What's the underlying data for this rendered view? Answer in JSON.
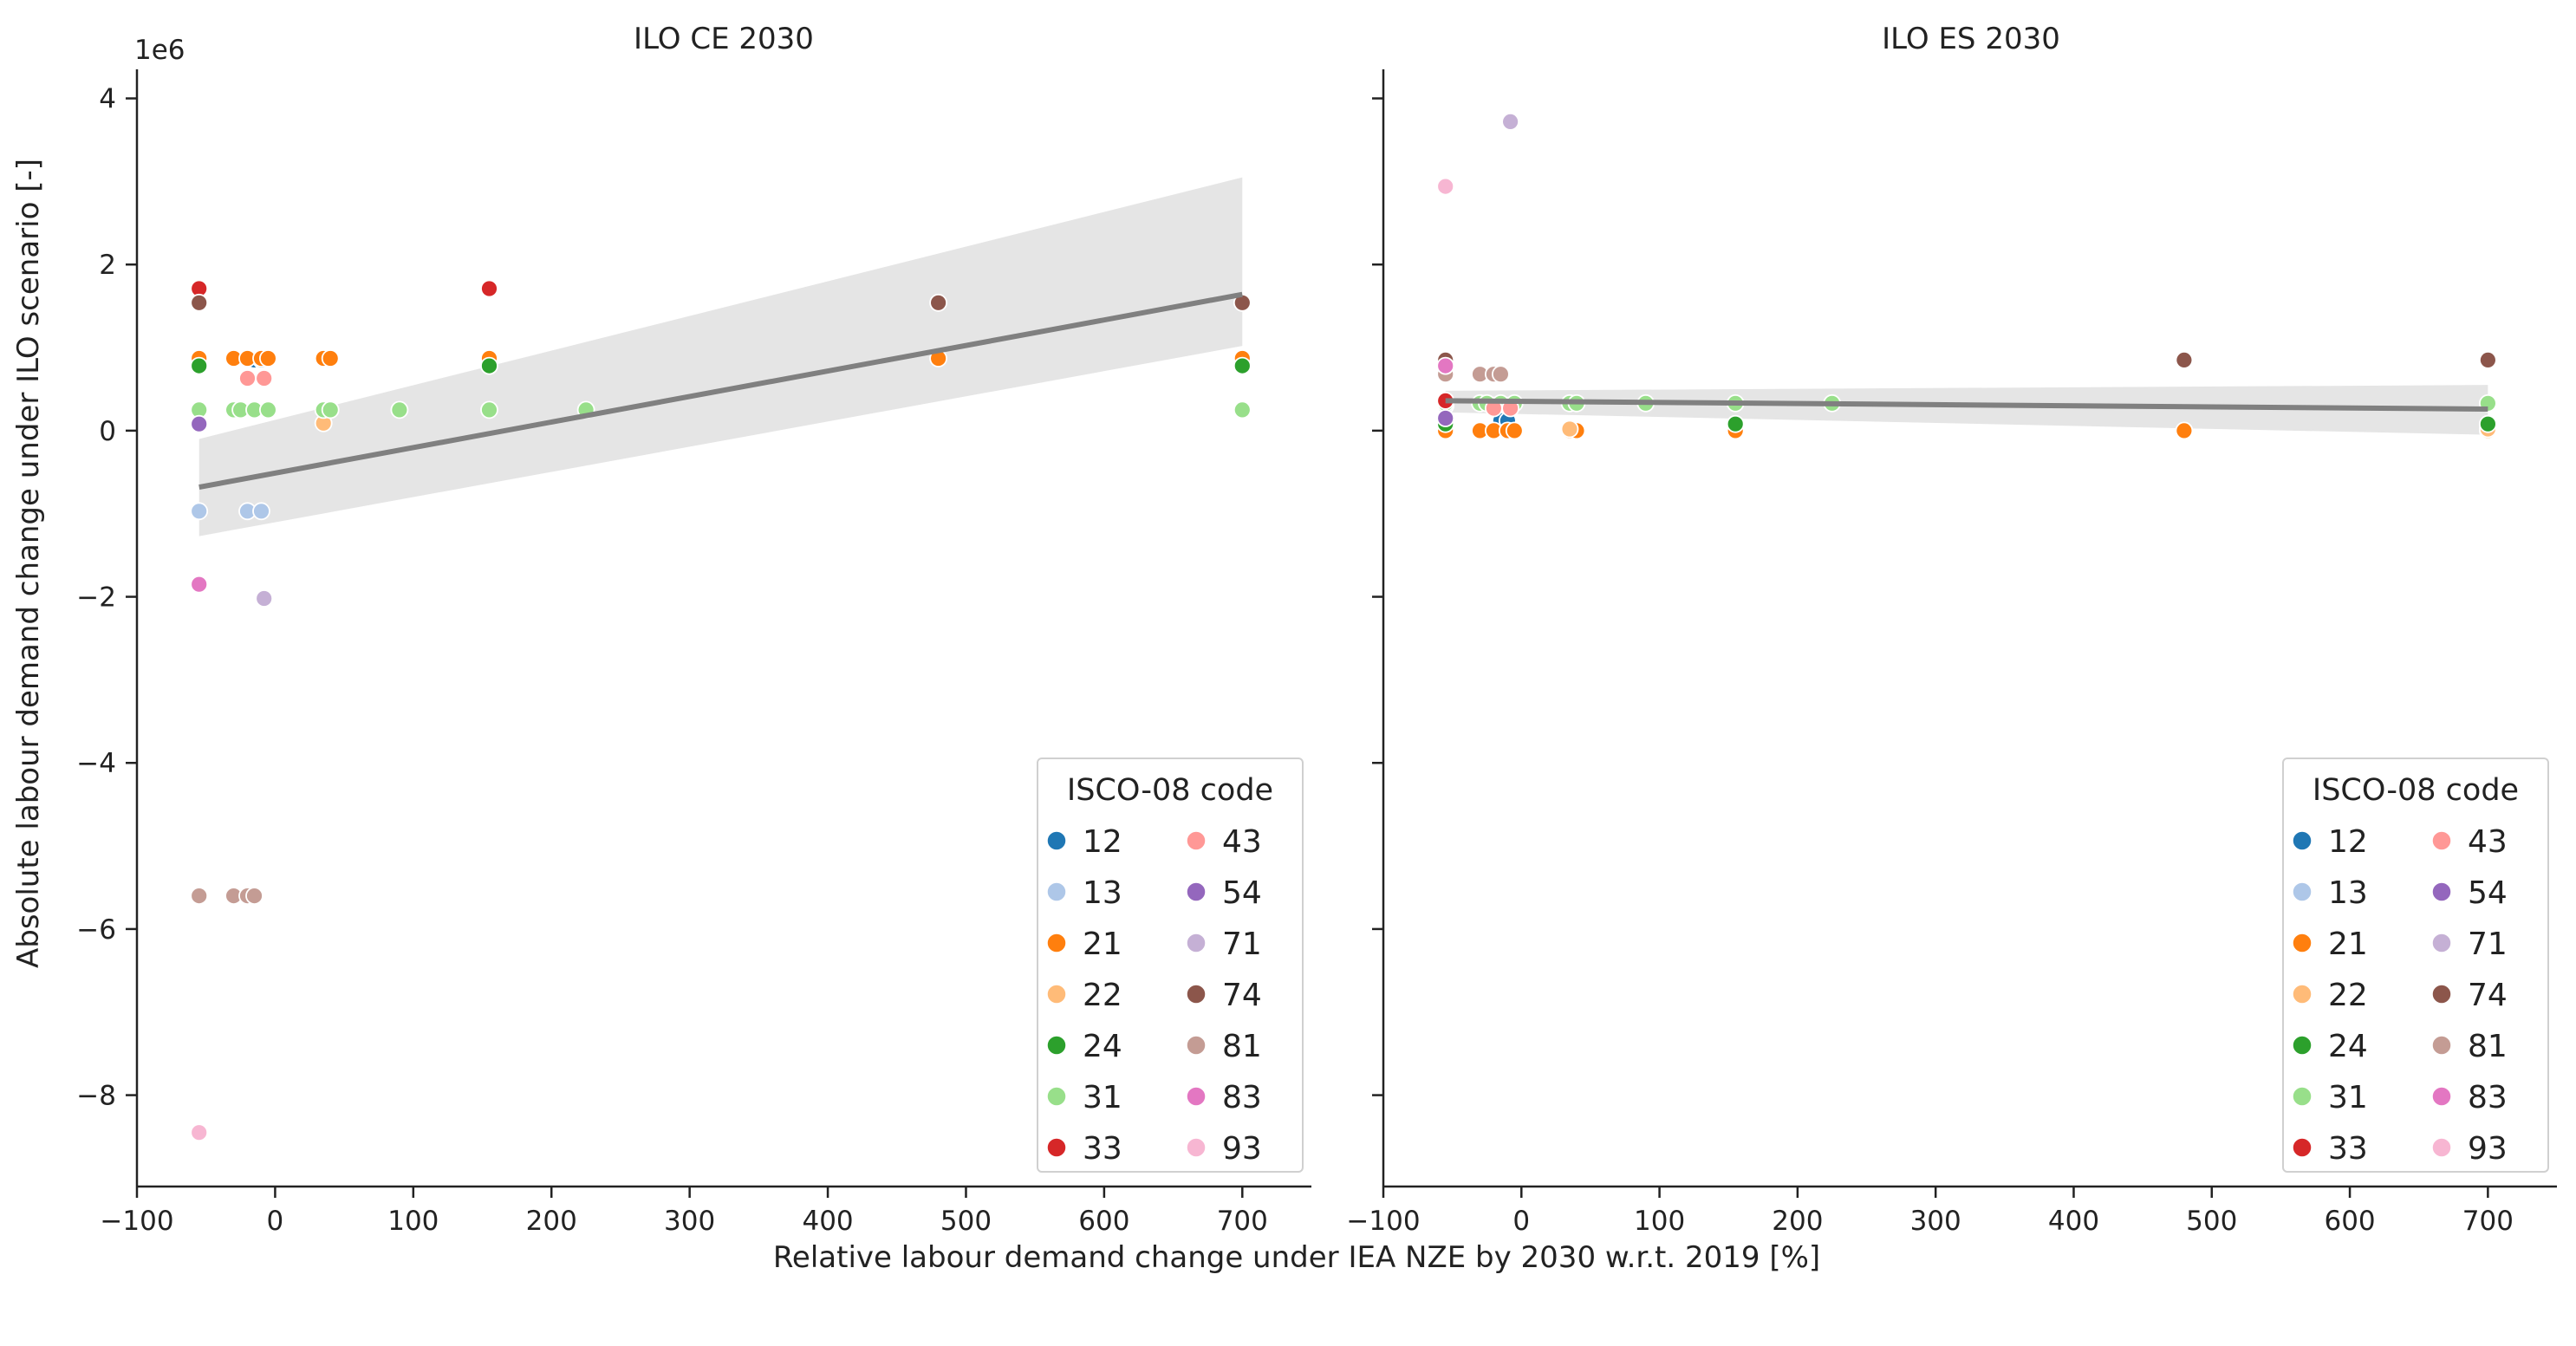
{
  "figure": {
    "xlabel": "Relative labour demand change under IEA NZE by 2030 w.r.t. 2019 [%]",
    "ylabel": "Absolute labour demand change under ILO scenario [-]",
    "y_offset_label": "1e6"
  },
  "palette": {
    "12": "#1f77b4",
    "13": "#aec7e8",
    "21": "#ff7f0e",
    "22": "#ffbb78",
    "24": "#2ca02c",
    "31": "#98df8a",
    "33": "#d62728",
    "43": "#ff9896",
    "54": "#9467bd",
    "71": "#c5b0d5",
    "74": "#8c564b",
    "81": "#c49c94",
    "83": "#e377c2",
    "93": "#f7b6d2",
    "regression_line": "#808080",
    "confidence_band": "#e5e5e5"
  },
  "chart_data": [
    {
      "type": "scatter",
      "title": "ILO CE 2030",
      "xlim": [
        -100,
        750
      ],
      "ylim": [
        -9.1,
        4.35
      ],
      "xticks": [
        -100,
        0,
        100,
        200,
        300,
        400,
        500,
        600,
        700
      ],
      "yticks": [
        -8,
        -6,
        -4,
        -2,
        0,
        2,
        4
      ],
      "y_unit": "1e6",
      "legend": {
        "title": "ISCO-08 code",
        "placement": "lower right",
        "ncol": 2,
        "entries": [
          "12",
          "13",
          "21",
          "22",
          "24",
          "31",
          "33",
          "43",
          "54",
          "71",
          "74",
          "81",
          "83",
          "93"
        ]
      },
      "regression": {
        "x": [
          -55,
          700
        ],
        "y": [
          -0.68,
          1.64
        ],
        "ci_lower": [
          -1.27,
          1.02
        ],
        "ci_upper": [
          -0.1,
          3.05
        ]
      },
      "series": [
        {
          "name": "12",
          "points": [
            [
              -55,
              0.25
            ],
            [
              -15,
              0.85
            ],
            [
              -10,
              0.85
            ]
          ]
        },
        {
          "name": "13",
          "points": [
            [
              -55,
              -0.97
            ],
            [
              -20,
              -0.97
            ],
            [
              -10,
              -0.97
            ]
          ]
        },
        {
          "name": "21",
          "points": [
            [
              -55,
              0.87
            ],
            [
              -30,
              0.87
            ],
            [
              -20,
              0.87
            ],
            [
              -10,
              0.87
            ],
            [
              -5,
              0.87
            ],
            [
              35,
              0.87
            ],
            [
              40,
              0.87
            ],
            [
              155,
              0.87
            ],
            [
              480,
              0.87
            ],
            [
              700,
              0.87
            ]
          ]
        },
        {
          "name": "22",
          "points": [
            [
              35,
              0.09
            ]
          ]
        },
        {
          "name": "24",
          "points": [
            [
              -55,
              0.78
            ],
            [
              155,
              0.78
            ],
            [
              700,
              0.78
            ]
          ]
        },
        {
          "name": "31",
          "points": [
            [
              -55,
              0.25
            ],
            [
              -30,
              0.25
            ],
            [
              -25,
              0.25
            ],
            [
              -15,
              0.25
            ],
            [
              -5,
              0.25
            ],
            [
              35,
              0.25
            ],
            [
              40,
              0.25
            ],
            [
              90,
              0.25
            ],
            [
              155,
              0.25
            ],
            [
              225,
              0.25
            ],
            [
              700,
              0.25
            ]
          ]
        },
        {
          "name": "33",
          "points": [
            [
              -55,
              1.71
            ],
            [
              155,
              1.71
            ]
          ]
        },
        {
          "name": "43",
          "points": [
            [
              -20,
              0.63
            ],
            [
              -8,
              0.63
            ]
          ]
        },
        {
          "name": "54",
          "points": [
            [
              -55,
              0.08
            ]
          ]
        },
        {
          "name": "71",
          "points": [
            [
              -8,
              -2.02
            ]
          ]
        },
        {
          "name": "74",
          "points": [
            [
              -55,
              1.54
            ],
            [
              480,
              1.54
            ],
            [
              700,
              1.54
            ]
          ]
        },
        {
          "name": "81",
          "points": [
            [
              -55,
              -5.6
            ],
            [
              -30,
              -5.6
            ],
            [
              -20,
              -5.6
            ],
            [
              -15,
              -5.6
            ]
          ]
        },
        {
          "name": "83",
          "points": [
            [
              -55,
              -1.85
            ]
          ]
        },
        {
          "name": "93",
          "points": [
            [
              -55,
              -8.45
            ]
          ]
        }
      ]
    },
    {
      "type": "scatter",
      "title": "ILO ES 2030",
      "xlim": [
        -100,
        750
      ],
      "ylim": [
        -9.1,
        4.35
      ],
      "xticks": [
        -100,
        0,
        100,
        200,
        300,
        400,
        500,
        600,
        700
      ],
      "yticks": [
        -8,
        -6,
        -4,
        -2,
        0,
        2,
        4
      ],
      "y_unit": "1e6",
      "legend": {
        "title": "ISCO-08 code",
        "placement": "lower right",
        "ncol": 2,
        "entries": [
          "12",
          "13",
          "21",
          "22",
          "24",
          "31",
          "33",
          "43",
          "54",
          "71",
          "74",
          "81",
          "83",
          "93"
        ]
      },
      "regression": {
        "x": [
          -55,
          700
        ],
        "y": [
          0.36,
          0.26
        ],
        "ci_lower": [
          0.22,
          -0.05
        ],
        "ci_upper": [
          0.48,
          0.55
        ]
      },
      "series": [
        {
          "name": "12",
          "points": [
            [
              -55,
              0.12
            ],
            [
              -15,
              0.12
            ],
            [
              -10,
              0.12
            ]
          ]
        },
        {
          "name": "13",
          "points": [
            [
              -55,
              0.3
            ],
            [
              -20,
              0.3
            ],
            [
              -10,
              0.3
            ]
          ]
        },
        {
          "name": "21",
          "points": [
            [
              -55,
              0.0
            ],
            [
              -30,
              0.0
            ],
            [
              -20,
              0.0
            ],
            [
              -10,
              0.0
            ],
            [
              -5,
              0.0
            ],
            [
              35,
              0.0
            ],
            [
              40,
              0.0
            ],
            [
              155,
              0.0
            ],
            [
              480,
              0.0
            ],
            [
              700,
              0.0
            ]
          ]
        },
        {
          "name": "22",
          "points": [
            [
              35,
              0.02
            ],
            [
              700,
              0.02
            ]
          ]
        },
        {
          "name": "24",
          "points": [
            [
              -55,
              0.08
            ],
            [
              155,
              0.08
            ],
            [
              700,
              0.08
            ]
          ]
        },
        {
          "name": "31",
          "points": [
            [
              -55,
              0.33
            ],
            [
              -30,
              0.33
            ],
            [
              -25,
              0.33
            ],
            [
              -15,
              0.33
            ],
            [
              -5,
              0.33
            ],
            [
              35,
              0.33
            ],
            [
              40,
              0.33
            ],
            [
              90,
              0.33
            ],
            [
              155,
              0.33
            ],
            [
              225,
              0.33
            ],
            [
              700,
              0.33
            ]
          ]
        },
        {
          "name": "33",
          "points": [
            [
              -55,
              0.36
            ]
          ]
        },
        {
          "name": "43",
          "points": [
            [
              -20,
              0.27
            ],
            [
              -8,
              0.27
            ]
          ]
        },
        {
          "name": "54",
          "points": [
            [
              -55,
              0.15
            ]
          ]
        },
        {
          "name": "71",
          "points": [
            [
              -8,
              3.72
            ]
          ]
        },
        {
          "name": "74",
          "points": [
            [
              -55,
              0.85
            ],
            [
              480,
              0.85
            ],
            [
              700,
              0.85
            ]
          ]
        },
        {
          "name": "81",
          "points": [
            [
              -55,
              0.68
            ],
            [
              -30,
              0.68
            ],
            [
              -20,
              0.68
            ],
            [
              -15,
              0.68
            ]
          ]
        },
        {
          "name": "83",
          "points": [
            [
              -55,
              0.78
            ]
          ]
        },
        {
          "name": "93",
          "points": [
            [
              -55,
              2.94
            ]
          ]
        }
      ]
    }
  ]
}
